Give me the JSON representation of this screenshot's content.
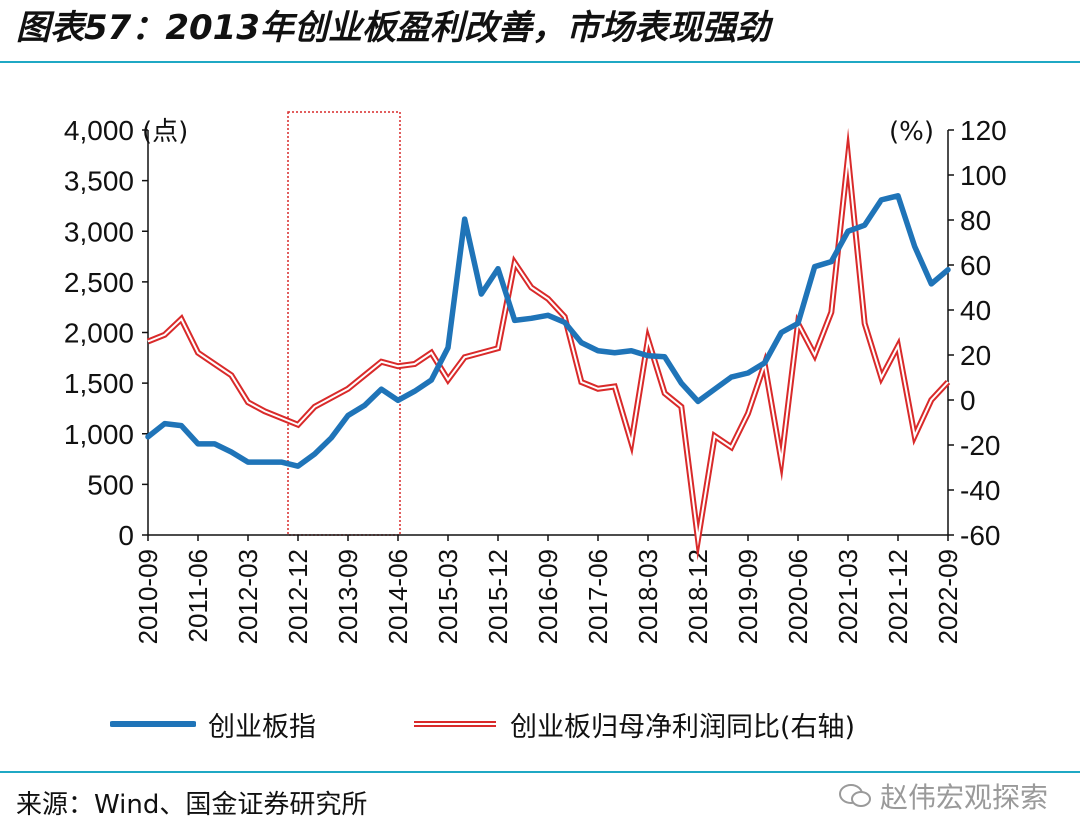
{
  "title": "图表57：2013年创业板盈利改善，市场表现强劲",
  "source": "来源：Wind、国金证券研究所",
  "watermark": "赵伟宏观探索",
  "colors": {
    "rule": "#1fa8c4",
    "index_line": "#1f74b8",
    "profit_line": "#d92a2a",
    "highlight_box": "#d92a2a",
    "axis": "#111111"
  },
  "chart_data": {
    "type": "line",
    "title": "",
    "left_axis": {
      "unit_label": "(点)",
      "ylim": [
        0,
        4000
      ],
      "ticks": [
        "0",
        "500",
        "1,000",
        "1,500",
        "2,000",
        "2,500",
        "3,000",
        "3,500",
        "4,000"
      ]
    },
    "right_axis": {
      "unit_label": "(%)",
      "ylim": [
        -60,
        120
      ],
      "ticks": [
        "-60",
        "-40",
        "-20",
        "0",
        "20",
        "40",
        "60",
        "80",
        "100",
        "120"
      ]
    },
    "x_labels": [
      "2010-09",
      "2011-06",
      "2012-03",
      "2012-12",
      "2013-09",
      "2014-06",
      "2015-03",
      "2015-12",
      "2016-09",
      "2017-06",
      "2018-03",
      "2018-12",
      "2019-09",
      "2020-06",
      "2021-03",
      "2021-12",
      "2022-09"
    ],
    "highlight": {
      "from_index": 9,
      "to_index": 15
    },
    "legend": [
      "创业板指",
      "创业板归母净利润同比(右轴)"
    ],
    "series": [
      {
        "name": "创业板指",
        "axis": "left",
        "values": [
          970,
          1100,
          1080,
          900,
          900,
          820,
          720,
          720,
          720,
          680,
          800,
          960,
          1180,
          1280,
          1440,
          1330,
          1420,
          1530,
          1850,
          3120,
          2380,
          2630,
          2120,
          2140,
          2170,
          2100,
          1900,
          1820,
          1800,
          1820,
          1770,
          1760,
          1500,
          1320,
          1440,
          1560,
          1600,
          1700,
          2000,
          2090,
          2650,
          2700,
          3000,
          3060,
          3310,
          3350,
          2850,
          2480,
          2620
        ]
      },
      {
        "name": "创业板归母净利润同比(右轴)",
        "axis": "right",
        "values": [
          26,
          29,
          36,
          21,
          16,
          11,
          -1,
          -5,
          -8,
          -11,
          -3,
          1,
          5,
          11,
          17,
          15,
          16,
          21,
          9,
          19,
          21,
          23,
          61,
          50,
          45,
          37,
          8,
          5,
          6,
          -19,
          27,
          3,
          -3,
          -62,
          -16,
          -21,
          -6,
          16,
          -27,
          34,
          20,
          39,
          108,
          34,
          10,
          24,
          -16,
          0,
          8
        ]
      }
    ]
  }
}
